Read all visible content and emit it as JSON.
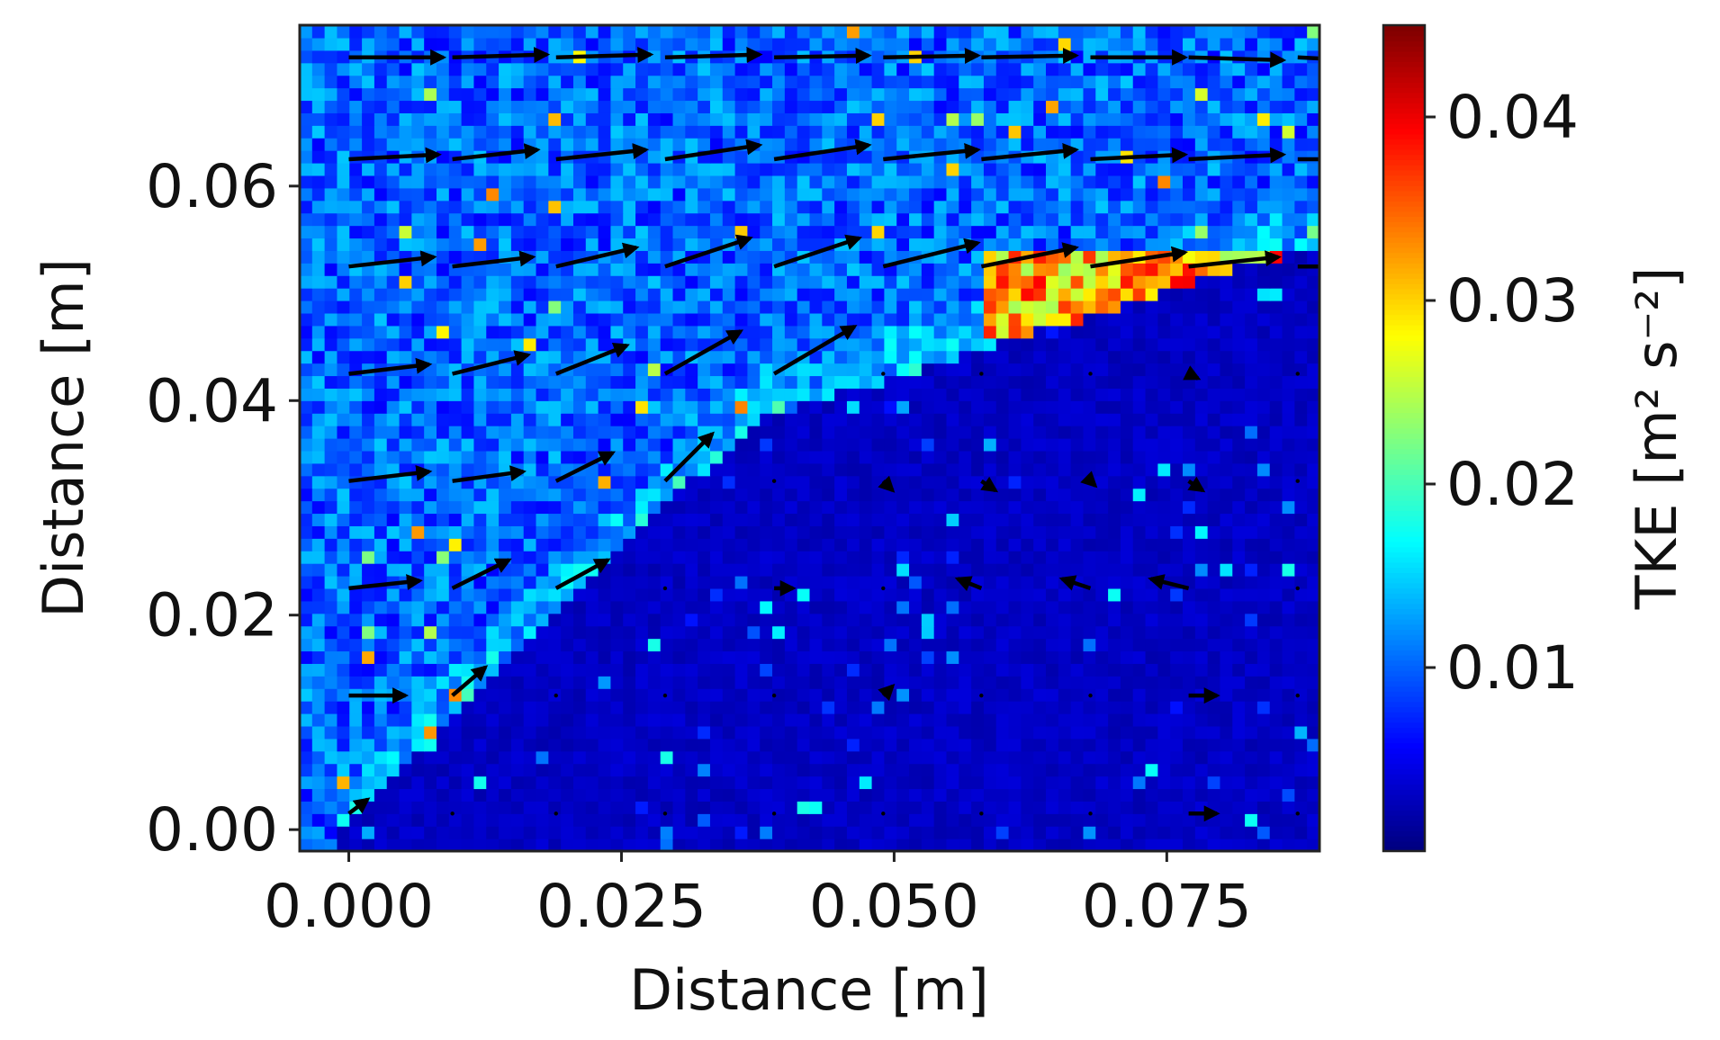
{
  "chart_data": {
    "type": "heatmap",
    "title": "",
    "xlabel": "Distance [m]",
    "ylabel": "Distance [m]",
    "xlim": [
      -0.0045,
      0.089
    ],
    "ylim": [
      -0.002,
      0.075
    ],
    "x_ticks": [
      0.0,
      0.025,
      0.05,
      0.075
    ],
    "x_tick_labels": [
      "0.000",
      "0.025",
      "0.050",
      "0.075"
    ],
    "y_ticks": [
      0.0,
      0.02,
      0.04,
      0.06
    ],
    "y_tick_labels": [
      "0.00",
      "0.02",
      "0.04",
      "0.06"
    ],
    "colorbar": {
      "label": "TKE [m² s⁻²]",
      "colormap": "jet",
      "range": [
        0.0,
        0.045
      ],
      "ticks": [
        0.01,
        0.02,
        0.03,
        0.04
      ],
      "tick_labels": [
        "0.01",
        "0.02",
        "0.03",
        "0.04"
      ]
    },
    "field_regions": {
      "free_stream_tke": 0.01,
      "shear_layer_tke": [
        0.015,
        0.04
      ],
      "shear_layer_peak_x": [
        0.058,
        0.089
      ],
      "shear_layer_peak_y": 0.05,
      "obstacle_apex": [
        0.037,
        0.038
      ],
      "obstacle_base_x": [
        -0.001,
        0.089
      ],
      "obstacle_tke": 0.002
    },
    "quiver": {
      "x": [
        0.0,
        0.0095,
        0.019,
        0.029,
        0.039,
        0.049,
        0.058,
        0.068,
        0.077,
        0.087
      ],
      "y": [
        0.0015,
        0.0125,
        0.0225,
        0.0325,
        0.0425,
        0.0525,
        0.0625,
        0.072
      ],
      "u": [
        [
          0.2,
          0.01,
          0.01,
          0.01,
          0.01,
          0.01,
          0.01,
          0.01,
          0.3,
          0.01
        ],
        [
          0.6,
          0.35,
          0.01,
          0.01,
          0.01,
          0.1,
          0.01,
          0.01,
          0.3,
          0.01
        ],
        [
          0.75,
          0.6,
          0.55,
          0.01,
          0.2,
          0.01,
          -0.25,
          -0.3,
          -0.4,
          0.01
        ],
        [
          0.85,
          0.75,
          0.6,
          0.5,
          0.01,
          0.1,
          0.15,
          0.05,
          0.15,
          0.01
        ],
        [
          0.85,
          0.8,
          0.75,
          0.8,
          0.85,
          0.01,
          0.01,
          0.01,
          0.1,
          0.01
        ],
        [
          0.9,
          0.85,
          0.85,
          0.9,
          0.9,
          1.0,
          1.0,
          1.0,
          0.95,
          0.9
        ],
        [
          0.95,
          0.9,
          0.95,
          1.0,
          1.0,
          1.0,
          1.0,
          1.0,
          1.0,
          1.0
        ],
        [
          1.0,
          1.0,
          1.0,
          1.0,
          1.0,
          1.0,
          1.0,
          1.0,
          1.0,
          1.0
        ]
      ],
      "v": [
        [
          0.15,
          0.0,
          0.0,
          0.0,
          0.0,
          0.0,
          0.0,
          0.0,
          0.0,
          0.0
        ],
        [
          0.0,
          0.3,
          0.0,
          0.0,
          0.0,
          0.1,
          0.0,
          0.0,
          0.0,
          0.0
        ],
        [
          0.08,
          0.3,
          0.3,
          0.0,
          0.0,
          0.0,
          0.1,
          0.1,
          0.1,
          0.0
        ],
        [
          0.1,
          0.1,
          0.3,
          0.5,
          0.0,
          -0.1,
          -0.1,
          -0.05,
          -0.1,
          0.0
        ],
        [
          0.1,
          0.2,
          0.3,
          0.45,
          0.5,
          0.0,
          0.0,
          0.0,
          -0.05,
          0.0
        ],
        [
          0.1,
          0.1,
          0.2,
          0.3,
          0.3,
          0.25,
          0.2,
          0.15,
          0.1,
          0.0
        ],
        [
          0.05,
          0.1,
          0.1,
          0.15,
          0.15,
          0.1,
          0.1,
          0.05,
          0.05,
          0.0
        ],
        [
          0.0,
          0.03,
          0.03,
          0.03,
          0.02,
          0.02,
          0.02,
          0.0,
          -0.03,
          -0.05
        ]
      ]
    }
  }
}
